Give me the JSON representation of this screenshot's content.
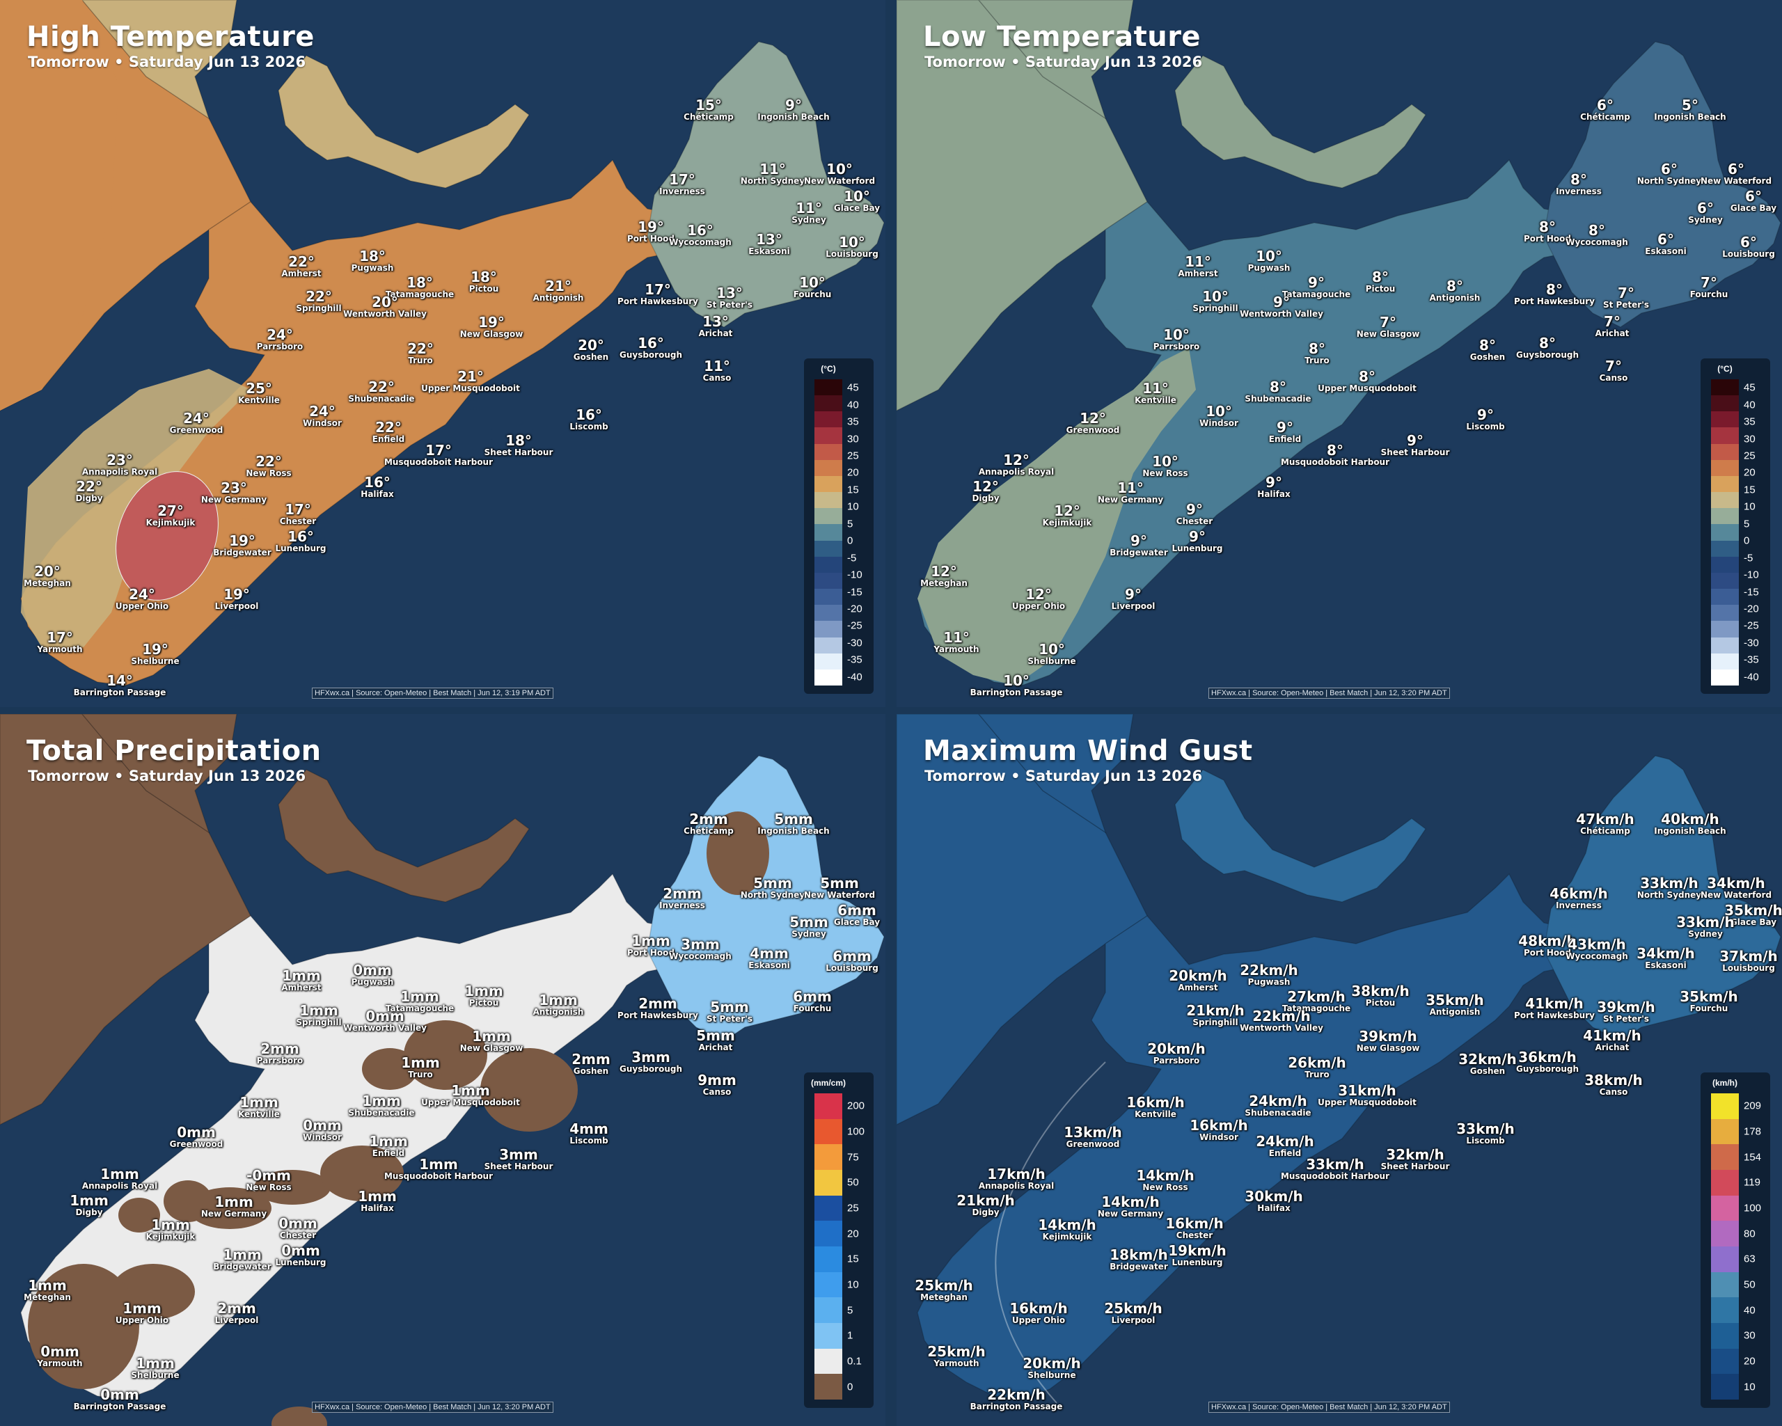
{
  "panels": [
    {
      "id": "high",
      "title": "High Temperature",
      "subtitle": "Tomorrow • Saturday Jun 13 2026",
      "source": "HFXwx.ca | Source: Open-Meteo | Best Match | Jun 12, 3:19 PM ADT",
      "legend": {
        "unit": "(°C)",
        "ticks": [
          "45",
          "40",
          "35",
          "30",
          "25",
          "20",
          "15",
          "10",
          "5",
          "0",
          "-5",
          "-10",
          "-15",
          "-20",
          "-25",
          "-30",
          "-35",
          "-40"
        ],
        "colors": [
          "#2a0508",
          "#4a0e18",
          "#7a1a2c",
          "#a5343f",
          "#c25a48",
          "#cf7c4b",
          "#d9a25c",
          "#c8b98a",
          "#97ad99",
          "#56889a",
          "#2f5d85",
          "#24457a",
          "#2d4b83",
          "#3b5d95",
          "#5474a8",
          "#7f99c4",
          "#b4c8e3",
          "#e6f1fb",
          "#ffffff"
        ]
      },
      "labels": [
        {
          "v": "15°",
          "n": "Chéticamp"
        },
        {
          "v": "9°",
          "n": "Ingonish Beach"
        },
        {
          "v": "17°",
          "n": "Inverness"
        },
        {
          "v": "11°",
          "n": "North Sydney"
        },
        {
          "v": "10°",
          "n": "New Waterford"
        },
        {
          "v": "10°",
          "n": "Glace Bay"
        },
        {
          "v": "11°",
          "n": "Sydney"
        },
        {
          "v": "19°",
          "n": "Port Hood"
        },
        {
          "v": "16°",
          "n": "Wycocomagh"
        },
        {
          "v": "13°",
          "n": "Eskasoni"
        },
        {
          "v": "10°",
          "n": "Louisbourg"
        },
        {
          "v": "22°",
          "n": "Amherst"
        },
        {
          "v": "18°",
          "n": "Pugwash"
        },
        {
          "v": "18°",
          "n": "Tatamagouche"
        },
        {
          "v": "18°",
          "n": "Pictou"
        },
        {
          "v": "21°",
          "n": "Antigonish"
        },
        {
          "v": "22°",
          "n": "Springhill"
        },
        {
          "v": "20°",
          "n": "Wentworth Valley"
        },
        {
          "v": "19°",
          "n": "New Glasgow"
        },
        {
          "v": "17°",
          "n": "Port Hawkesbury"
        },
        {
          "v": "13°",
          "n": "St Peter's"
        },
        {
          "v": "10°",
          "n": "Fourchu"
        },
        {
          "v": "13°",
          "n": "Arichat"
        },
        {
          "v": "24°",
          "n": "Parrsboro"
        },
        {
          "v": "22°",
          "n": "Truro"
        },
        {
          "v": "20°",
          "n": "Goshen"
        },
        {
          "v": "16°",
          "n": "Guysborough"
        },
        {
          "v": "11°",
          "n": "Canso"
        },
        {
          "v": "25°",
          "n": "Kentville"
        },
        {
          "v": "22°",
          "n": "Shubenacadie"
        },
        {
          "v": "21°",
          "n": "Upper Musquodoboit"
        },
        {
          "v": "24°",
          "n": "Greenwood"
        },
        {
          "v": "24°",
          "n": "Windsor"
        },
        {
          "v": "22°",
          "n": "Enfield"
        },
        {
          "v": "16°",
          "n": "Liscomb"
        },
        {
          "v": "23°",
          "n": "Annapolis Royal"
        },
        {
          "v": "22°",
          "n": "New Ross"
        },
        {
          "v": "17°",
          "n": "Musquodoboit Harbour"
        },
        {
          "v": "18°",
          "n": "Sheet Harbour"
        },
        {
          "v": "22°",
          "n": "Digby"
        },
        {
          "v": "23°",
          "n": "New Germany"
        },
        {
          "v": "16°",
          "n": "Halifax"
        },
        {
          "v": "27°",
          "n": "Kejimkujik"
        },
        {
          "v": "17°",
          "n": "Chester"
        },
        {
          "v": "19°",
          "n": "Bridgewater"
        },
        {
          "v": "16°",
          "n": "Lunenburg"
        },
        {
          "v": "20°",
          "n": "Meteghan"
        },
        {
          "v": "24°",
          "n": "Upper Ohio"
        },
        {
          "v": "19°",
          "n": "Liverpool"
        },
        {
          "v": "17°",
          "n": "Yarmouth"
        },
        {
          "v": "19°",
          "n": "Shelburne"
        },
        {
          "v": "14°",
          "n": "Barrington Passage"
        }
      ]
    },
    {
      "id": "low",
      "title": "Low Temperature",
      "subtitle": "Tomorrow • Saturday Jun 13 2026",
      "source": "HFXwx.ca | Source: Open-Meteo | Best Match | Jun 12, 3:20 PM ADT",
      "legend": {
        "unit": "(°C)",
        "ticks": [
          "45",
          "40",
          "35",
          "30",
          "25",
          "20",
          "15",
          "10",
          "5",
          "0",
          "-5",
          "-10",
          "-15",
          "-20",
          "-25",
          "-30",
          "-35",
          "-40"
        ],
        "colors": [
          "#2a0508",
          "#4a0e18",
          "#7a1a2c",
          "#a5343f",
          "#c25a48",
          "#cf7c4b",
          "#d9a25c",
          "#c8b98a",
          "#97ad99",
          "#56889a",
          "#2f5d85",
          "#24457a",
          "#2d4b83",
          "#3b5d95",
          "#5474a8",
          "#7f99c4",
          "#b4c8e3",
          "#e6f1fb",
          "#ffffff"
        ]
      },
      "labels": [
        {
          "v": "6°",
          "n": "Chéticamp"
        },
        {
          "v": "5°",
          "n": "Ingonish Beach"
        },
        {
          "v": "8°",
          "n": "Inverness"
        },
        {
          "v": "6°",
          "n": "North Sydney"
        },
        {
          "v": "6°",
          "n": "New Waterford"
        },
        {
          "v": "6°",
          "n": "Glace Bay"
        },
        {
          "v": "6°",
          "n": "Sydney"
        },
        {
          "v": "8°",
          "n": "Port Hood"
        },
        {
          "v": "8°",
          "n": "Wycocomagh"
        },
        {
          "v": "6°",
          "n": "Eskasoni"
        },
        {
          "v": "6°",
          "n": "Louisbourg"
        },
        {
          "v": "11°",
          "n": "Amherst"
        },
        {
          "v": "10°",
          "n": "Pugwash"
        },
        {
          "v": "9°",
          "n": "Tatamagouche"
        },
        {
          "v": "8°",
          "n": "Pictou"
        },
        {
          "v": "8°",
          "n": "Antigonish"
        },
        {
          "v": "10°",
          "n": "Springhill"
        },
        {
          "v": "9°",
          "n": "Wentworth Valley"
        },
        {
          "v": "7°",
          "n": "New Glasgow"
        },
        {
          "v": "8°",
          "n": "Port Hawkesbury"
        },
        {
          "v": "7°",
          "n": "St Peter's"
        },
        {
          "v": "7°",
          "n": "Fourchu"
        },
        {
          "v": "7°",
          "n": "Arichat"
        },
        {
          "v": "10°",
          "n": "Parrsboro"
        },
        {
          "v": "8°",
          "n": "Truro"
        },
        {
          "v": "8°",
          "n": "Goshen"
        },
        {
          "v": "8°",
          "n": "Guysborough"
        },
        {
          "v": "7°",
          "n": "Canso"
        },
        {
          "v": "11°",
          "n": "Kentville"
        },
        {
          "v": "8°",
          "n": "Shubenacadie"
        },
        {
          "v": "8°",
          "n": "Upper Musquodoboit"
        },
        {
          "v": "12°",
          "n": "Greenwood"
        },
        {
          "v": "10°",
          "n": "Windsor"
        },
        {
          "v": "9°",
          "n": "Enfield"
        },
        {
          "v": "9°",
          "n": "Liscomb"
        },
        {
          "v": "12°",
          "n": "Annapolis Royal"
        },
        {
          "v": "10°",
          "n": "New Ross"
        },
        {
          "v": "8°",
          "n": "Musquodoboit Harbour"
        },
        {
          "v": "9°",
          "n": "Sheet Harbour"
        },
        {
          "v": "12°",
          "n": "Digby"
        },
        {
          "v": "11°",
          "n": "New Germany"
        },
        {
          "v": "9°",
          "n": "Halifax"
        },
        {
          "v": "12°",
          "n": "Kejimkujik"
        },
        {
          "v": "9°",
          "n": "Chester"
        },
        {
          "v": "9°",
          "n": "Bridgewater"
        },
        {
          "v": "9°",
          "n": "Lunenburg"
        },
        {
          "v": "12°",
          "n": "Meteghan"
        },
        {
          "v": "12°",
          "n": "Upper Ohio"
        },
        {
          "v": "9°",
          "n": "Liverpool"
        },
        {
          "v": "11°",
          "n": "Yarmouth"
        },
        {
          "v": "10°",
          "n": "Shelburne"
        },
        {
          "v": "10°",
          "n": "Barrington Passage"
        }
      ]
    },
    {
      "id": "precip",
      "title": "Total Precipitation",
      "subtitle": "Tomorrow • Saturday Jun 13 2026",
      "source": "HFXwx.ca | Source: Open-Meteo | Best Match | Jun 12, 3:20 PM ADT",
      "legend": {
        "unit": "(mm/cm)",
        "ticks": [
          "200",
          "100",
          "75",
          "50",
          "25",
          "20",
          "15",
          "10",
          "5",
          "1",
          "0.1",
          "0"
        ],
        "colors": [
          "#d9334a",
          "#e8582f",
          "#f39b3b",
          "#f2c640",
          "#1b4fa0",
          "#1f6fc7",
          "#2b8be0",
          "#3f9ded",
          "#5bb0ef",
          "#7fc3f3",
          "#ececec",
          "#7b5a44"
        ]
      },
      "labels": [
        {
          "v": "2mm",
          "n": "Chéticamp"
        },
        {
          "v": "5mm",
          "n": "Ingonish Beach"
        },
        {
          "v": "2mm",
          "n": "Inverness"
        },
        {
          "v": "5mm",
          "n": "North Sydney"
        },
        {
          "v": "5mm",
          "n": "New Waterford"
        },
        {
          "v": "6mm",
          "n": "Glace Bay"
        },
        {
          "v": "5mm",
          "n": "Sydney"
        },
        {
          "v": "1mm",
          "n": "Port Hood"
        },
        {
          "v": "3mm",
          "n": "Wycocomagh"
        },
        {
          "v": "4mm",
          "n": "Eskasoni"
        },
        {
          "v": "6mm",
          "n": "Louisbourg"
        },
        {
          "v": "1mm",
          "n": "Amherst"
        },
        {
          "v": "0mm",
          "n": "Pugwash"
        },
        {
          "v": "1mm",
          "n": "Tatamagouche"
        },
        {
          "v": "1mm",
          "n": "Pictou"
        },
        {
          "v": "1mm",
          "n": "Antigonish"
        },
        {
          "v": "1mm",
          "n": "Springhill"
        },
        {
          "v": "0mm",
          "n": "Wentworth Valley"
        },
        {
          "v": "1mm",
          "n": "New Glasgow"
        },
        {
          "v": "2mm",
          "n": "Port Hawkesbury"
        },
        {
          "v": "5mm",
          "n": "St Peter's"
        },
        {
          "v": "6mm",
          "n": "Fourchu"
        },
        {
          "v": "5mm",
          "n": "Arichat"
        },
        {
          "v": "2mm",
          "n": "Parrsboro"
        },
        {
          "v": "1mm",
          "n": "Truro"
        },
        {
          "v": "2mm",
          "n": "Goshen"
        },
        {
          "v": "3mm",
          "n": "Guysborough"
        },
        {
          "v": "9mm",
          "n": "Canso"
        },
        {
          "v": "1mm",
          "n": "Kentville"
        },
        {
          "v": "1mm",
          "n": "Shubenacadie"
        },
        {
          "v": "1mm",
          "n": "Upper Musquodoboit"
        },
        {
          "v": "0mm",
          "n": "Greenwood"
        },
        {
          "v": "0mm",
          "n": "Windsor"
        },
        {
          "v": "1mm",
          "n": "Enfield"
        },
        {
          "v": "4mm",
          "n": "Liscomb"
        },
        {
          "v": "1mm",
          "n": "Annapolis Royal"
        },
        {
          "v": "-0mm",
          "n": "New Ross"
        },
        {
          "v": "1mm",
          "n": "Musquodoboit Harbour"
        },
        {
          "v": "3mm",
          "n": "Sheet Harbour"
        },
        {
          "v": "1mm",
          "n": "Digby"
        },
        {
          "v": "1mm",
          "n": "New Germany"
        },
        {
          "v": "1mm",
          "n": "Halifax"
        },
        {
          "v": "1mm",
          "n": "Kejimkujik"
        },
        {
          "v": "0mm",
          "n": "Chester"
        },
        {
          "v": "1mm",
          "n": "Bridgewater"
        },
        {
          "v": "0mm",
          "n": "Lunenburg"
        },
        {
          "v": "1mm",
          "n": "Meteghan"
        },
        {
          "v": "1mm",
          "n": "Upper Ohio"
        },
        {
          "v": "2mm",
          "n": "Liverpool"
        },
        {
          "v": "0mm",
          "n": "Yarmouth"
        },
        {
          "v": "1mm",
          "n": "Shelburne"
        },
        {
          "v": "0mm",
          "n": "Barrington Passage"
        }
      ]
    },
    {
      "id": "wind",
      "title": "Maximum Wind Gust",
      "subtitle": "Tomorrow • Saturday Jun 13 2026",
      "source": "HFXwx.ca | Source: Open-Meteo | Best Match | Jun 12, 3:20 PM ADT",
      "legend": {
        "unit": "(km/h)",
        "ticks": [
          "209",
          "178",
          "154",
          "119",
          "100",
          "80",
          "63",
          "50",
          "40",
          "30",
          "20",
          "10"
        ],
        "colors": [
          "#f2e22a",
          "#e7ad3e",
          "#cf6a4a",
          "#d24a5a",
          "#d463a0",
          "#b16ac0",
          "#8f6fcd",
          "#4f8fb3",
          "#2f76a5",
          "#1e5f95",
          "#194d86",
          "#143e74"
        ]
      },
      "labels": [
        {
          "v": "47km/h",
          "n": "Chéticamp"
        },
        {
          "v": "40km/h",
          "n": "Ingonish Beach"
        },
        {
          "v": "46km/h",
          "n": "Inverness"
        },
        {
          "v": "33km/h",
          "n": "North Sydney"
        },
        {
          "v": "34km/h",
          "n": "New Waterford"
        },
        {
          "v": "35km/h",
          "n": "Glace Bay"
        },
        {
          "v": "33km/h",
          "n": "Sydney"
        },
        {
          "v": "48km/h",
          "n": "Port Hood"
        },
        {
          "v": "43km/h",
          "n": "Wycocomagh"
        },
        {
          "v": "34km/h",
          "n": "Eskasoni"
        },
        {
          "v": "37km/h",
          "n": "Louisbourg"
        },
        {
          "v": "20km/h",
          "n": "Amherst"
        },
        {
          "v": "22km/h",
          "n": "Pugwash"
        },
        {
          "v": "27km/h",
          "n": "Tatamagouche"
        },
        {
          "v": "38km/h",
          "n": "Pictou"
        },
        {
          "v": "35km/h",
          "n": "Antigonish"
        },
        {
          "v": "21km/h",
          "n": "Springhill"
        },
        {
          "v": "22km/h",
          "n": "Wentworth Valley"
        },
        {
          "v": "39km/h",
          "n": "New Glasgow"
        },
        {
          "v": "41km/h",
          "n": "Port Hawkesbury"
        },
        {
          "v": "39km/h",
          "n": "St Peter's"
        },
        {
          "v": "35km/h",
          "n": "Fourchu"
        },
        {
          "v": "41km/h",
          "n": "Arichat"
        },
        {
          "v": "20km/h",
          "n": "Parrsboro"
        },
        {
          "v": "26km/h",
          "n": "Truro"
        },
        {
          "v": "32km/h",
          "n": "Goshen"
        },
        {
          "v": "36km/h",
          "n": "Guysborough"
        },
        {
          "v": "38km/h",
          "n": "Canso"
        },
        {
          "v": "16km/h",
          "n": "Kentville"
        },
        {
          "v": "24km/h",
          "n": "Shubenacadie"
        },
        {
          "v": "31km/h",
          "n": "Upper Musquodoboit"
        },
        {
          "v": "13km/h",
          "n": "Greenwood"
        },
        {
          "v": "16km/h",
          "n": "Windsor"
        },
        {
          "v": "24km/h",
          "n": "Enfield"
        },
        {
          "v": "33km/h",
          "n": "Liscomb"
        },
        {
          "v": "17km/h",
          "n": "Annapolis Royal"
        },
        {
          "v": "14km/h",
          "n": "New Ross"
        },
        {
          "v": "33km/h",
          "n": "Musquodoboit Harbour"
        },
        {
          "v": "32km/h",
          "n": "Sheet Harbour"
        },
        {
          "v": "21km/h",
          "n": "Digby"
        },
        {
          "v": "14km/h",
          "n": "New Germany"
        },
        {
          "v": "30km/h",
          "n": "Halifax"
        },
        {
          "v": "14km/h",
          "n": "Kejimkujik"
        },
        {
          "v": "16km/h",
          "n": "Chester"
        },
        {
          "v": "18km/h",
          "n": "Bridgewater"
        },
        {
          "v": "19km/h",
          "n": "Lunenburg"
        },
        {
          "v": "25km/h",
          "n": "Meteghan"
        },
        {
          "v": "16km/h",
          "n": "Upper Ohio"
        },
        {
          "v": "25km/h",
          "n": "Liverpool"
        },
        {
          "v": "25km/h",
          "n": "Yarmouth"
        },
        {
          "v": "20km/h",
          "n": "Shelburne"
        },
        {
          "v": "22km/h",
          "n": "Barrington Passage"
        }
      ]
    }
  ],
  "colors": {
    "ocean": "#1d3a5c",
    "high_land": "#cf8b4e",
    "high_cool": "#c8b07c",
    "high_cold": "#8fa69a",
    "high_hot": "#c15b5a",
    "low_land": "#8da38f",
    "low_cool": "#4a7c94",
    "low_cold": "#3f6a8c",
    "precip_brown": "#7b5a44",
    "precip_white": "#ebebeb",
    "precip_blue": "#8cc6ef",
    "wind_land": "#24598c",
    "wind_land2": "#2d6a9a"
  }
}
